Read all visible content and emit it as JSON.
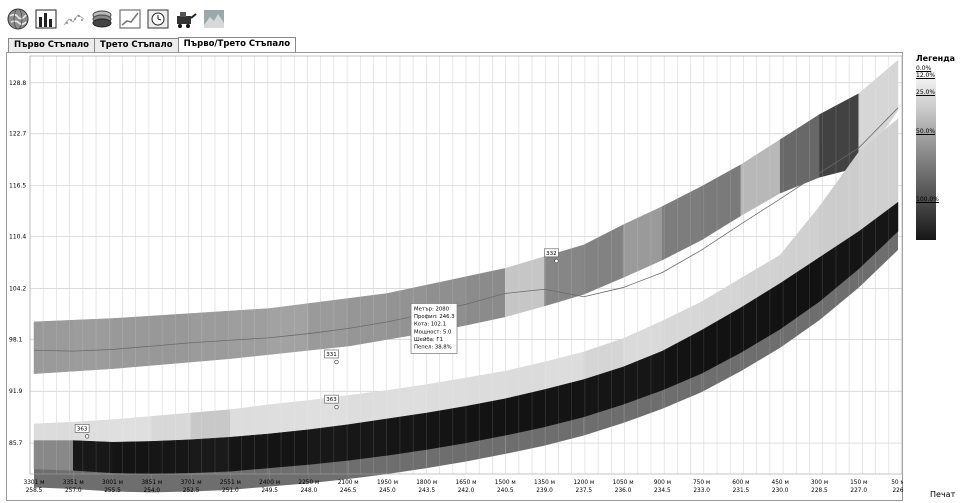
{
  "toolbar": {
    "icons": [
      "globe-icon",
      "bar-chart-icon",
      "scatter-plot-icon",
      "layers-icon",
      "line-chart-icon",
      "clock-chart-icon",
      "mining-machine-icon",
      "surface-icon"
    ]
  },
  "tabs": [
    {
      "label": "Първо Стъпало",
      "active": false
    },
    {
      "label": "Трето Стъпало",
      "active": false
    },
    {
      "label": "Първо/Трето Стъпало",
      "active": true
    }
  ],
  "legend": {
    "title": "Легенда",
    "labels": [
      "0.0%",
      "12.0%",
      "25.0%",
      "50.0%",
      "100.0%"
    ]
  },
  "print_label": "Печат",
  "chart_data": {
    "type": "area",
    "ylim": [
      82,
      132
    ],
    "y_ticks": [
      "128.8",
      "122.7",
      "116.5",
      "110.4",
      "104.2",
      "98.1",
      "91.9",
      "85.7"
    ],
    "x_labels_top": [
      "3301 м",
      "3351 м",
      "3001 м",
      "3851 м",
      "3701 м",
      "2551 м",
      "2400 м",
      "2250 м",
      "2100 м",
      "1950 м",
      "1800 м",
      "1650 м",
      "1500 м",
      "1350 м",
      "1200 м",
      "1050 м",
      "900 м",
      "750 м",
      "600 м",
      "450 м",
      "300 м",
      "150 м",
      "50 м"
    ],
    "x_labels_bottom": [
      "258.5",
      "257.0",
      "255.5",
      "254.0",
      "252.5",
      "251.0",
      "249.5",
      "248.0",
      "246.5",
      "245.0",
      "243.5",
      "242.0",
      "240.5",
      "239.0",
      "237.5",
      "236.0",
      "234.5",
      "233.0",
      "231.5",
      "230.0",
      "228.5",
      "227.0",
      "226"
    ],
    "layers": [
      {
        "name": "upper",
        "shade": "#9a9a9a",
        "top": [
          100.2,
          100.4,
          100.6,
          100.9,
          101.2,
          101.5,
          101.8,
          102.4,
          103.0,
          103.6,
          104.6,
          105.6,
          106.6,
          108.0,
          109.4,
          111.8,
          114.0,
          116.4,
          119.0,
          122.0,
          125.0,
          127.5,
          131.5
        ],
        "bottom": [
          94.0,
          94.3,
          94.6,
          95.0,
          95.4,
          95.8,
          96.3,
          96.8,
          97.3,
          98.1,
          98.9,
          99.8,
          100.8,
          102.1,
          103.5,
          105.5,
          107.6,
          110.0,
          112.9,
          115.6,
          117.5,
          118.7,
          125.5
        ]
      },
      {
        "name": "middle",
        "shade": "#b5b5b5",
        "top": [
          88.0,
          88.2,
          88.5,
          88.9,
          89.3,
          89.7,
          90.3,
          90.8,
          91.4,
          92.0,
          92.7,
          93.5,
          94.3,
          95.4,
          96.6,
          98.2,
          100.3,
          102.6,
          105.4,
          108.2,
          114.0,
          120.5,
          124.5
        ],
        "bottom": [
          86.0,
          86.0,
          85.8,
          85.9,
          86.1,
          86.4,
          86.8,
          87.3,
          87.9,
          88.6,
          89.3,
          90.1,
          91.0,
          92.1,
          93.3,
          94.8,
          96.7,
          99.2,
          101.9,
          104.8,
          107.9,
          111.0,
          114.5
        ]
      },
      {
        "name": "lower",
        "shade": "#151515",
        "top": [
          86.0,
          86.0,
          85.8,
          85.9,
          86.1,
          86.4,
          86.8,
          87.3,
          87.9,
          88.6,
          89.3,
          90.1,
          91.0,
          92.1,
          93.3,
          94.8,
          96.7,
          99.2,
          101.9,
          104.8,
          107.9,
          111.0,
          114.5
        ],
        "bottom": [
          82.6,
          82.4,
          82.1,
          82.0,
          82.1,
          82.3,
          82.7,
          83.1,
          83.6,
          84.2,
          84.9,
          85.7,
          86.6,
          87.6,
          88.8,
          90.3,
          92.0,
          94.0,
          96.5,
          99.3,
          102.6,
          106.5,
          111.0
        ]
      }
    ],
    "profile_line": [
      96.8,
      96.7,
      96.9,
      97.3,
      97.7,
      98.0,
      98.3,
      98.8,
      99.4,
      100.2,
      101.2,
      102.3,
      103.6,
      104.1,
      103.2,
      104.3,
      106.1,
      108.8,
      111.9,
      114.9,
      118.0,
      121.0,
      125.8
    ],
    "markers": [
      {
        "label": "363",
        "xi": 1.2,
        "y": 86.5
      },
      {
        "label": "331",
        "xi": 7.55,
        "y": 95.4
      },
      {
        "label": "363",
        "xi": 7.55,
        "y": 90.0
      },
      {
        "label": "332",
        "xi": 13.15,
        "y": 107.5
      }
    ],
    "tooltip": {
      "xi": 9.6,
      "y": 101.2,
      "lines": [
        "Метър: 2080",
        "Профил: 246.3",
        "Кота: 102.1",
        "Мощност: 5.0",
        "Шейба: Г1",
        "Пепел: 38.8%"
      ]
    }
  }
}
